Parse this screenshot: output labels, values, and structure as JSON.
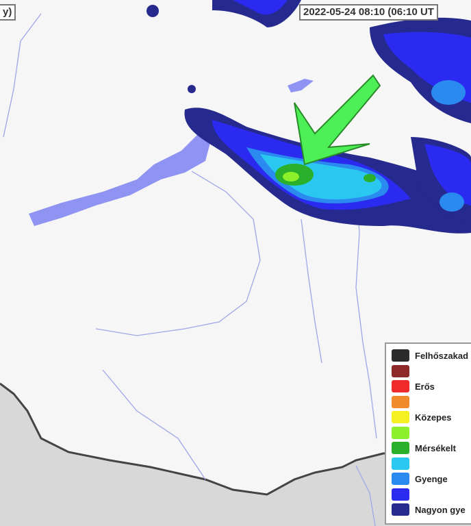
{
  "map": {
    "title_fragment": "y)",
    "timestamp": "2022-05-24 08:10 (06:10 UT",
    "arrow_color": "#4cf056",
    "lake_color": "#8f93f2"
  },
  "legend": {
    "items": [
      {
        "label": "Felhőszakad",
        "color": "#2b2b2b"
      },
      {
        "label": "",
        "color": "#8e2a2a"
      },
      {
        "label": "Erős",
        "color": "#f02a2a"
      },
      {
        "label": "",
        "color": "#f08a2a"
      },
      {
        "label": "Közepes",
        "color": "#f5f021"
      },
      {
        "label": "",
        "color": "#8ef02a"
      },
      {
        "label": "Mérsékelt",
        "color": "#2ab02a"
      },
      {
        "label": "",
        "color": "#2ac8f0"
      },
      {
        "label": "Gyenge",
        "color": "#2a8af0"
      },
      {
        "label": "",
        "color": "#2a2af0"
      },
      {
        "label": "Nagyon gye",
        "color": "#262a8e"
      }
    ]
  }
}
